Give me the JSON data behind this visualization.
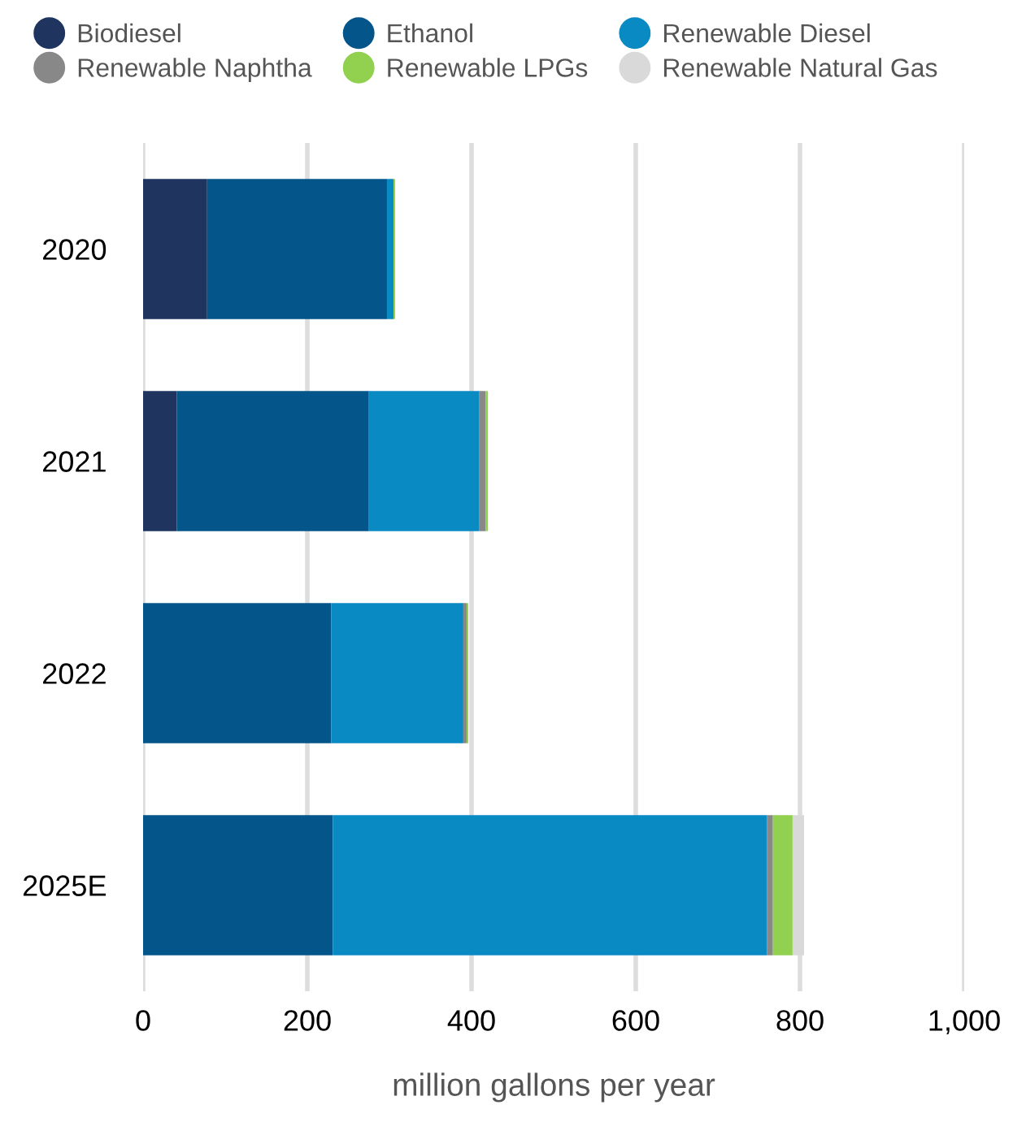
{
  "chart_data": {
    "type": "bar",
    "orientation": "horizontal",
    "stacked": true,
    "categories": [
      "2020",
      "2021",
      "2022",
      "2025E"
    ],
    "series": [
      {
        "name": "Biodiesel",
        "color": "#1f3560",
        "values": [
          78,
          41,
          0,
          0
        ]
      },
      {
        "name": "Ethanol",
        "color": "#04558a",
        "values": [
          219,
          234,
          229,
          231
        ]
      },
      {
        "name": "Renewable Diesel",
        "color": "#0a8ac3",
        "values": [
          8,
          134,
          161,
          529
        ]
      },
      {
        "name": "Renewable Naphtha",
        "color": "#888888",
        "values": [
          0,
          8,
          4,
          7
        ]
      },
      {
        "name": "Renewable LPGs",
        "color": "#92d050",
        "values": [
          2,
          3,
          2,
          24
        ]
      },
      {
        "name": "Renewable Natural Gas",
        "color": "#d9d9d9",
        "values": [
          0,
          0,
          0,
          14
        ]
      }
    ],
    "xlim": [
      0,
      1000
    ],
    "xticks": [
      0,
      200,
      400,
      600,
      800,
      {
        "value": 1000,
        "label": "1,000"
      }
    ],
    "xlabel": "million gallons per year",
    "grid": "x",
    "legend": "top"
  }
}
